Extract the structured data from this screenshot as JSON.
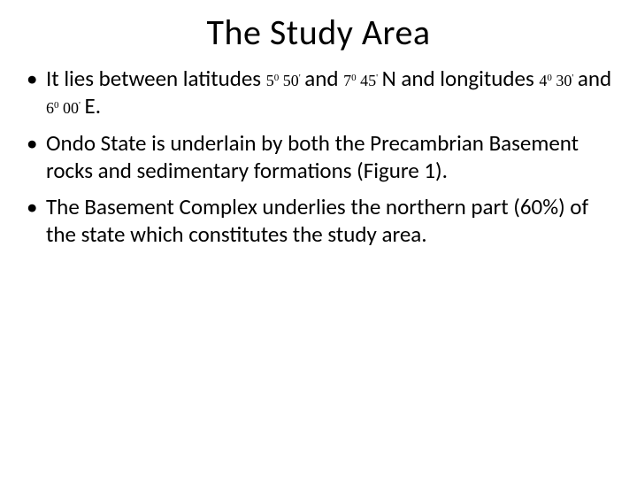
{
  "title": "The Study Area",
  "bullets": {
    "b1": {
      "p1": "It lies between latitudes",
      "lat1_deg": "5",
      "lat1_degmark": "0",
      "lat1_min": "50",
      "lat1_minmark": "'",
      "and1": "and",
      "lat2_deg": "7",
      "lat2_degmark": "0",
      "lat2_min": "45",
      "lat2_minmark": "'",
      "p2": "N and longitudes",
      "lon1_deg": "4",
      "lon1_degmark": "0",
      "lon1_min": "30",
      "lon1_minmark": "'",
      "and2": "and",
      "lon2_deg": "6",
      "lon2_degmark": "0",
      "lon2_min": "00",
      "lon2_minmark": "'",
      "p3": "E."
    },
    "b2": "Ondo State is underlain by both the Precambrian Basement rocks and sedimentary formations (Figure 1).",
    "b3": " The Basement Complex underlies the northern part (60%) of the state  which constitutes the study area."
  }
}
